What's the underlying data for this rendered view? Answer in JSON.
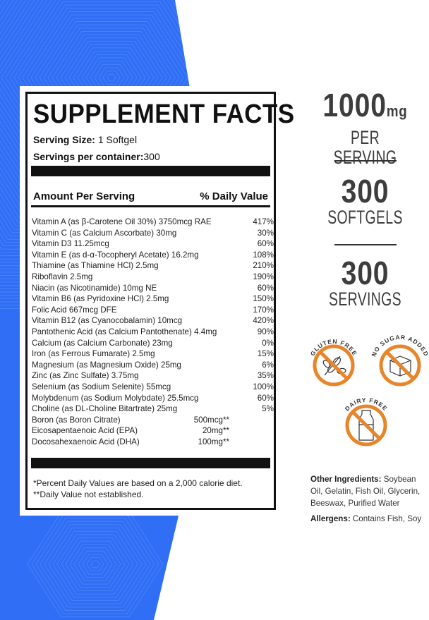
{
  "colors": {
    "background_blue": "#2F6EF5",
    "icon_orange": "#E8852A",
    "text_dark": "#3d3d3d"
  },
  "facts": {
    "title": "SUPPLEMENT FACTS",
    "serving_size_label": "Serving Size:",
    "serving_size_value": "1 Softgel",
    "servings_label": "Servings per container:",
    "servings_value": "300",
    "amount_header": "Amount Per Serving",
    "dv_header": "% Daily Value",
    "nutrients": [
      {
        "name": "Vitamin A (as β-Carotene Oil 30%) 3750mcg RAE",
        "dv": "417%"
      },
      {
        "name": "Vitamin C (as Calcium Ascorbate)  30mg",
        "dv": "30%"
      },
      {
        "name": "Vitamin D3 11.25mcg",
        "dv": "60%"
      },
      {
        "name": "Vitamin E (as d-α-Tocopheryl Acetate)  16.2mg",
        "dv": "108%"
      },
      {
        "name": "Thiamine (as Thiamine HCl)  2.5mg",
        "dv": "210%"
      },
      {
        "name": "Riboflavin  2.5mg",
        "dv": "190%"
      },
      {
        "name": "Niacin (as Nicotinamide)  10mg NE",
        "dv": "60%"
      },
      {
        "name": "Vitamin B6 (as Pyridoxine HCl)  2.5mg",
        "dv": "150%"
      },
      {
        "name": "Folic Acid  667mcg DFE",
        "dv": "170%"
      },
      {
        "name": "Vitamin B12 (as Cyanocobalamin)  10mcg",
        "dv": "420%"
      },
      {
        "name": "Pantothenic Acid (as Calcium Pantothenate)  4.4mg",
        "dv": "90%"
      },
      {
        "name": "Calcium (as Calcium Carbonate)  23mg",
        "dv": "0%"
      },
      {
        "name": "Iron (as Ferrous Fumarate)  2.5mg",
        "dv": "15%"
      },
      {
        "name": "Magnesium (as Magnesium Oxide)  25mg",
        "dv": "6%"
      },
      {
        "name": "Zinc (as Zinc Sulfate)  3.75mg",
        "dv": "35%"
      },
      {
        "name": "Selenium (as Sodium Selenite)  55mcg",
        "dv": "100%"
      },
      {
        "name": "Molybdenum (as Sodium Molybdate)  25.5mcg",
        "dv": "60%"
      },
      {
        "name": "Choline (as DL-Choline Bitartrate)  25mg",
        "dv": "5%"
      }
    ],
    "other_nutrients": [
      {
        "name": "Boron (as Boron Citrate)",
        "amount": "500mcg**"
      },
      {
        "name": "Eicosapentaenoic Acid (EPA)",
        "amount": "20mg**"
      },
      {
        "name": "Docosahexaenoic Acid (DHA)",
        "amount": "100mg**"
      }
    ],
    "footnote1": "*Percent Daily Values are based on a 2,000 calorie diet.",
    "footnote2": "**Daily Value not established."
  },
  "stats": [
    {
      "value": "1000",
      "unit": "mg",
      "label": "PER SERVING"
    },
    {
      "value": "300",
      "label": "SOFTGELS"
    },
    {
      "value": "300",
      "label": "SERVINGS"
    }
  ],
  "badges": [
    {
      "label": "GLUTEN FREE",
      "icon": "wheat-icon"
    },
    {
      "label": "NO SUGAR ADDED",
      "icon": "sugar-cube-icon"
    },
    {
      "label": "DAIRY FREE",
      "icon": "milk-bottle-icon"
    }
  ],
  "ingredients": {
    "other_label": "Other Ingredients:",
    "other_value": " Soybean Oil, Gelatin, Fish Oil, Glycerin, Beeswax, Purified Water",
    "allergens_label": "Allergens:",
    "allergens_value": " Contains Fish, Soy"
  }
}
